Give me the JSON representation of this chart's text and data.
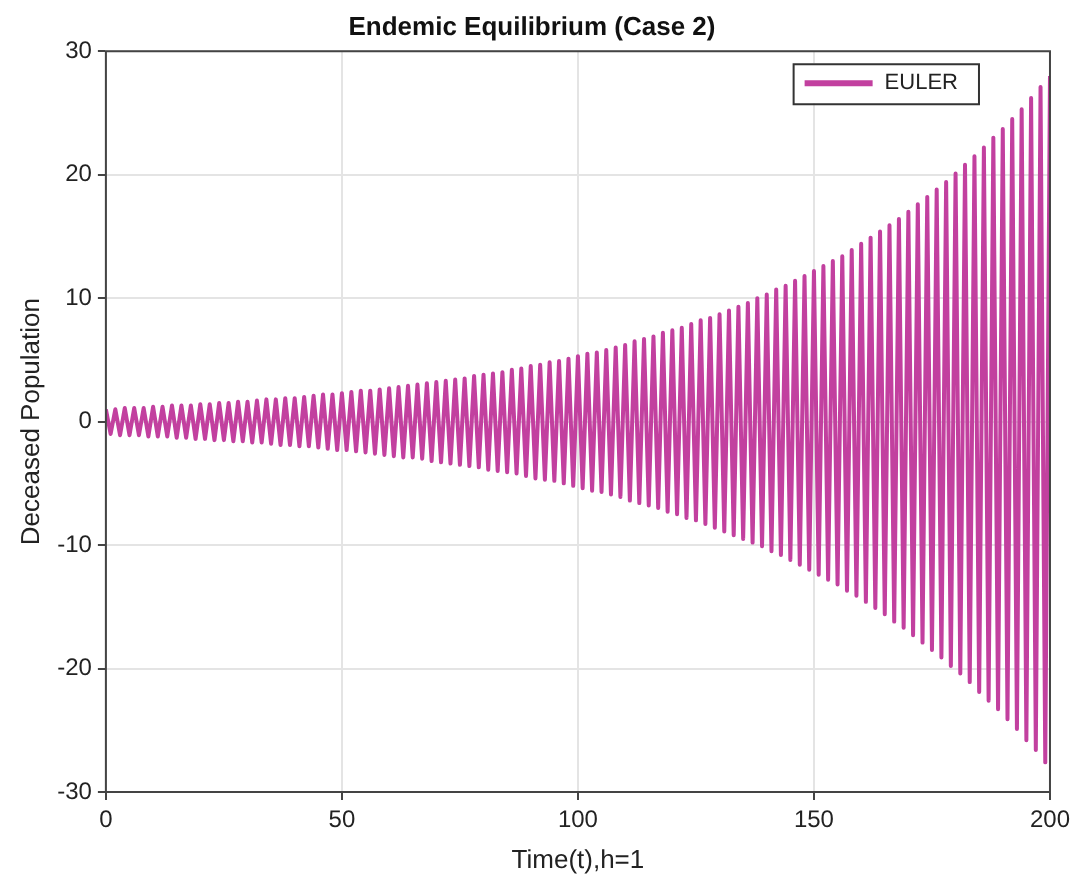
{
  "chart_data": {
    "type": "line",
    "title": "Endemic Equilibrium (Case 2)",
    "xlabel": "Time(t),h=1",
    "ylabel": "Deceased Population",
    "x": [
      0,
      1,
      2,
      3,
      4,
      5,
      6,
      7,
      8,
      9,
      10,
      11,
      12,
      13,
      14,
      15,
      16,
      17,
      18,
      19,
      20,
      21,
      22,
      23,
      24,
      25,
      26,
      27,
      28,
      29,
      30,
      31,
      32,
      33,
      34,
      35,
      36,
      37,
      38,
      39,
      40,
      41,
      42,
      43,
      44,
      45,
      46,
      47,
      48,
      49,
      50,
      51,
      52,
      53,
      54,
      55,
      56,
      57,
      58,
      59,
      60,
      61,
      62,
      63,
      64,
      65,
      66,
      67,
      68,
      69,
      70,
      71,
      72,
      73,
      74,
      75,
      76,
      77,
      78,
      79,
      80,
      81,
      82,
      83,
      84,
      85,
      86,
      87,
      88,
      89,
      90,
      91,
      92,
      93,
      94,
      95,
      96,
      97,
      98,
      99,
      100,
      101,
      102,
      103,
      104,
      105,
      106,
      107,
      108,
      109,
      110,
      111,
      112,
      113,
      114,
      115,
      116,
      117,
      118,
      119,
      120,
      121,
      122,
      123,
      124,
      125,
      126,
      127,
      128,
      129,
      130,
      131,
      132,
      133,
      134,
      135,
      136,
      137,
      138,
      139,
      140,
      141,
      142,
      143,
      144,
      145,
      146,
      147,
      148,
      149,
      150,
      151,
      152,
      153,
      154,
      155,
      156,
      157,
      158,
      159,
      160,
      161,
      162,
      163,
      164,
      165,
      166,
      167,
      168,
      169,
      170,
      171,
      172,
      173,
      174,
      175,
      176,
      177,
      178,
      179,
      180,
      181,
      182,
      183,
      184,
      185,
      186,
      187,
      188,
      189,
      190,
      191,
      192,
      193,
      194,
      195,
      196,
      197,
      198,
      199,
      200
    ],
    "series": [
      {
        "name": "EULER",
        "color": "#c2409f",
        "values": [
          1.0,
          -1.0,
          1.0,
          -1.1,
          1.1,
          -1.1,
          1.1,
          -1.1,
          1.1,
          -1.2,
          1.2,
          -1.2,
          1.2,
          -1.2,
          1.3,
          -1.3,
          1.3,
          -1.3,
          1.3,
          -1.4,
          1.4,
          -1.4,
          1.4,
          -1.5,
          1.5,
          -1.5,
          1.5,
          -1.6,
          1.6,
          -1.6,
          1.6,
          -1.7,
          1.7,
          -1.7,
          1.8,
          -1.8,
          1.8,
          -1.9,
          1.9,
          -1.9,
          1.9,
          -2.0,
          2.0,
          -2.0,
          2.1,
          -2.1,
          2.2,
          -2.2,
          2.2,
          -2.3,
          2.3,
          -2.3,
          2.4,
          -2.4,
          2.5,
          -2.5,
          2.5,
          -2.6,
          2.6,
          -2.7,
          2.7,
          -2.8,
          2.8,
          -2.9,
          2.9,
          -2.9,
          3.0,
          -3.0,
          3.1,
          -3.2,
          3.2,
          -3.3,
          3.3,
          -3.4,
          3.4,
          -3.5,
          3.5,
          -3.6,
          3.7,
          -3.7,
          3.8,
          -3.9,
          3.9,
          -4.0,
          4.0,
          -4.1,
          4.2,
          -4.2,
          4.3,
          -4.4,
          4.5,
          -4.6,
          4.6,
          -4.7,
          4.8,
          -4.8,
          4.9,
          -5.0,
          5.1,
          -5.2,
          5.3,
          -5.4,
          5.5,
          -5.6,
          5.6,
          -5.7,
          5.8,
          -5.9,
          6.0,
          -6.1,
          6.2,
          -6.4,
          6.5,
          -6.6,
          6.7,
          -6.8,
          6.9,
          -7.0,
          7.2,
          -7.3,
          7.4,
          -7.5,
          7.6,
          -7.8,
          7.9,
          -8.0,
          8.2,
          -8.3,
          8.4,
          -8.6,
          8.7,
          -8.9,
          9.0,
          -9.2,
          9.3,
          -9.5,
          9.6,
          -9.8,
          10.0,
          -10.1,
          10.3,
          -10.5,
          10.7,
          -10.8,
          11.0,
          -11.2,
          11.4,
          -11.6,
          11.8,
          -12.0,
          12.2,
          -12.4,
          12.6,
          -12.8,
          13.0,
          -13.2,
          13.4,
          -13.7,
          13.9,
          -14.1,
          14.4,
          -14.6,
          14.9,
          -15.1,
          15.4,
          -15.6,
          15.9,
          -16.2,
          16.4,
          -16.7,
          17.0,
          -17.3,
          17.6,
          -17.9,
          18.2,
          -18.5,
          18.8,
          -19.1,
          19.4,
          -19.8,
          20.1,
          -20.4,
          20.8,
          -21.1,
          21.5,
          -21.9,
          22.2,
          -22.6,
          23.0,
          -23.3,
          23.7,
          -24.1,
          24.5,
          -24.9,
          25.3,
          -25.8,
          26.2,
          -26.6,
          27.1,
          -27.6,
          28.0
        ]
      }
    ],
    "xlim": [
      0,
      200
    ],
    "xticks": [
      0,
      50,
      100,
      150,
      200
    ],
    "ylim": [
      -30,
      30
    ],
    "yticks": [
      -30,
      -20,
      -10,
      0,
      10,
      20,
      30
    ],
    "grid": true,
    "legend": "top right",
    "marker": "none",
    "line_style": "solid"
  }
}
